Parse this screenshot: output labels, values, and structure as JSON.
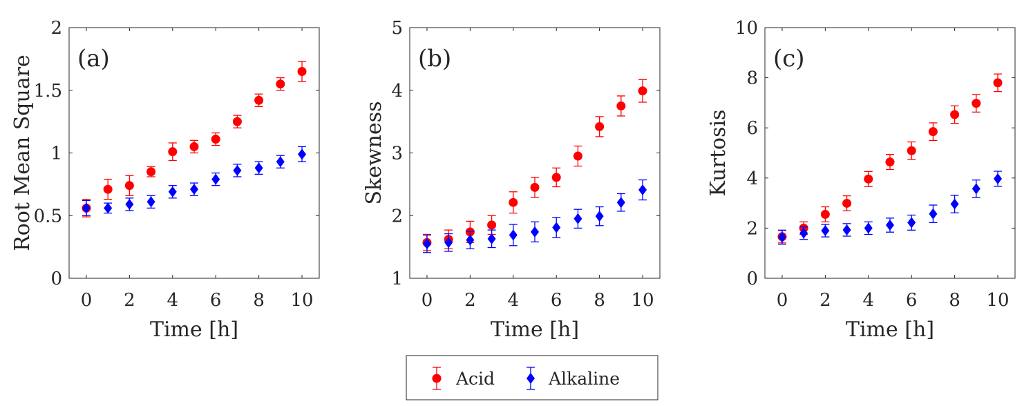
{
  "chart_data": [
    {
      "type": "scatter",
      "panel_label": "(a)",
      "xlabel": "Time [h]",
      "ylabel": "Root Mean Square",
      "xlim": [
        -0.8,
        10.8
      ],
      "ylim": [
        0,
        2
      ],
      "xticks": [
        0,
        2,
        4,
        6,
        8,
        10
      ],
      "yticks": [
        0,
        0.5,
        1,
        1.5,
        2
      ],
      "ytick_labels": [
        "0",
        "0.5",
        "1",
        "1.5",
        "2"
      ],
      "x": [
        0,
        1,
        2,
        3,
        4,
        5,
        6,
        7,
        8,
        9,
        10
      ],
      "series": [
        {
          "name": "Acid",
          "color": "#ff0000",
          "marker": "circle",
          "values": [
            0.56,
            0.71,
            0.74,
            0.85,
            1.01,
            1.05,
            1.11,
            1.25,
            1.42,
            1.55,
            1.65
          ],
          "errors": [
            0.07,
            0.08,
            0.08,
            0.04,
            0.07,
            0.05,
            0.05,
            0.05,
            0.05,
            0.05,
            0.08
          ]
        },
        {
          "name": "Alkaline",
          "color": "#0000ff",
          "marker": "diamond",
          "values": [
            0.56,
            0.56,
            0.59,
            0.61,
            0.69,
            0.71,
            0.79,
            0.86,
            0.88,
            0.93,
            0.99
          ],
          "errors": [
            0.06,
            0.04,
            0.05,
            0.05,
            0.05,
            0.05,
            0.05,
            0.05,
            0.05,
            0.05,
            0.06
          ]
        }
      ]
    },
    {
      "type": "scatter",
      "panel_label": "(b)",
      "xlabel": "Time [h]",
      "ylabel": "Skewness",
      "xlim": [
        -0.8,
        10.8
      ],
      "ylim": [
        1,
        5
      ],
      "xticks": [
        0,
        2,
        4,
        6,
        8,
        10
      ],
      "yticks": [
        1,
        2,
        3,
        4,
        5
      ],
      "ytick_labels": [
        "1",
        "2",
        "3",
        "4",
        "5"
      ],
      "x": [
        0,
        1,
        2,
        3,
        4,
        5,
        6,
        7,
        8,
        9,
        10
      ],
      "series": [
        {
          "name": "Acid",
          "color": "#ff0000",
          "marker": "circle",
          "values": [
            1.57,
            1.62,
            1.74,
            1.85,
            2.21,
            2.45,
            2.61,
            2.95,
            3.42,
            3.75,
            3.99
          ],
          "errors": [
            0.13,
            0.15,
            0.17,
            0.15,
            0.17,
            0.16,
            0.15,
            0.16,
            0.16,
            0.16,
            0.18
          ]
        },
        {
          "name": "Alkaline",
          "color": "#0000ff",
          "marker": "diamond",
          "values": [
            1.55,
            1.57,
            1.61,
            1.63,
            1.69,
            1.74,
            1.81,
            1.95,
            1.99,
            2.21,
            2.41
          ],
          "errors": [
            0.14,
            0.14,
            0.14,
            0.14,
            0.17,
            0.16,
            0.16,
            0.15,
            0.15,
            0.14,
            0.16
          ]
        }
      ]
    },
    {
      "type": "scatter",
      "panel_label": "(c)",
      "xlabel": "Time [h]",
      "ylabel": "Kurtosis",
      "xlim": [
        -0.8,
        10.8
      ],
      "ylim": [
        0,
        10
      ],
      "xticks": [
        0,
        2,
        4,
        6,
        8,
        10
      ],
      "yticks": [
        0,
        2,
        4,
        6,
        8,
        10
      ],
      "ytick_labels": [
        "0",
        "2",
        "4",
        "6",
        "8",
        "10"
      ],
      "x": [
        0,
        1,
        2,
        3,
        4,
        5,
        6,
        7,
        8,
        9,
        10
      ],
      "series": [
        {
          "name": "Acid",
          "color": "#ff0000",
          "marker": "circle",
          "values": [
            1.66,
            2.0,
            2.55,
            2.99,
            3.96,
            4.64,
            5.09,
            5.85,
            6.53,
            6.98,
            7.8
          ],
          "errors": [
            0.25,
            0.25,
            0.3,
            0.3,
            0.3,
            0.3,
            0.35,
            0.35,
            0.35,
            0.35,
            0.35
          ]
        },
        {
          "name": "Alkaline",
          "color": "#0000ff",
          "marker": "diamond",
          "values": [
            1.64,
            1.8,
            1.9,
            1.93,
            2.0,
            2.12,
            2.22,
            2.57,
            2.96,
            3.57,
            3.97
          ],
          "errors": [
            0.28,
            0.25,
            0.25,
            0.25,
            0.25,
            0.28,
            0.3,
            0.35,
            0.35,
            0.35,
            0.3
          ]
        }
      ]
    }
  ],
  "legend": {
    "position": "bottom-center",
    "entries": [
      {
        "label": "Acid",
        "color": "#ff0000",
        "marker": "circle"
      },
      {
        "label": "Alkaline",
        "color": "#0000ff",
        "marker": "diamond"
      }
    ]
  }
}
